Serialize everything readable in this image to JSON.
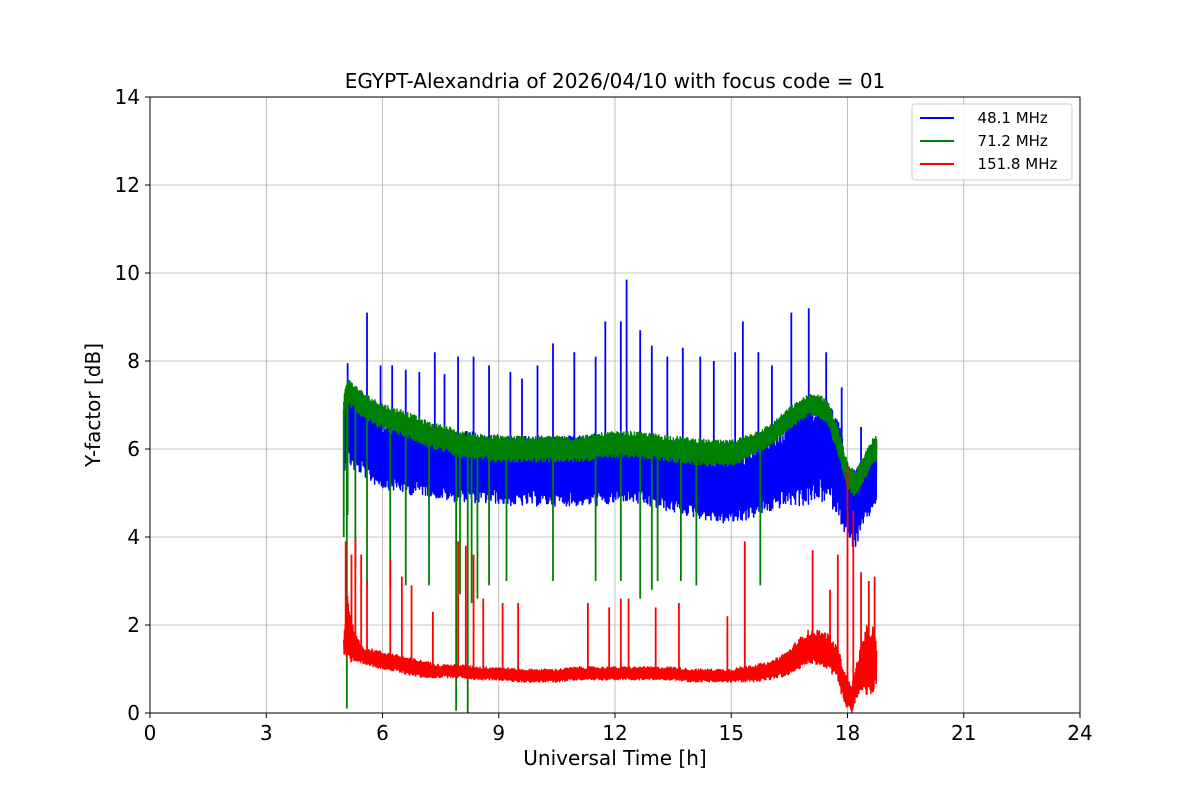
{
  "chart_data": {
    "type": "line",
    "title": "EGYPT-Alexandria of 2026/04/10 with focus code = 01",
    "xlabel": "Universal Time [h]",
    "ylabel": "Y-factor [dB]",
    "xlim": [
      0,
      24
    ],
    "ylim": [
      0,
      14
    ],
    "xticks": [
      0,
      3,
      6,
      9,
      12,
      15,
      18,
      21,
      24
    ],
    "yticks": [
      0,
      2,
      4,
      6,
      8,
      10,
      12,
      14
    ],
    "grid": true,
    "legend_position": "top-right",
    "series": [
      {
        "name": "  48.1 MHz",
        "color": "#0000ff",
        "x": [
          5.0,
          5.05,
          5.1,
          5.25,
          5.5,
          5.6,
          5.75,
          6.0,
          6.25,
          6.5,
          6.75,
          7.0,
          7.25,
          7.5,
          7.75,
          8.0,
          8.25,
          8.5,
          8.75,
          9.0,
          9.25,
          9.5,
          9.75,
          10.0,
          10.25,
          10.5,
          10.75,
          11.0,
          11.25,
          11.5,
          11.75,
          12.0,
          12.2,
          12.3,
          12.5,
          12.75,
          13.0,
          13.25,
          13.5,
          13.75,
          14.0,
          14.25,
          14.5,
          14.75,
          15.0,
          15.25,
          15.5,
          15.75,
          16.0,
          16.25,
          16.5,
          16.75,
          17.0,
          17.25,
          17.5,
          17.75,
          18.0,
          18.2,
          18.4,
          18.6,
          18.75
        ],
        "mean": [
          6.1,
          6.4,
          6.5,
          6.3,
          6.2,
          6.1,
          6.0,
          5.9,
          5.85,
          5.8,
          5.75,
          5.75,
          5.7,
          5.65,
          5.6,
          5.6,
          5.6,
          5.55,
          5.55,
          5.55,
          5.5,
          5.5,
          5.5,
          5.5,
          5.5,
          5.5,
          5.5,
          5.5,
          5.5,
          5.5,
          5.5,
          5.55,
          5.6,
          5.6,
          5.55,
          5.5,
          5.45,
          5.4,
          5.35,
          5.3,
          5.25,
          5.2,
          5.15,
          5.1,
          5.1,
          5.15,
          5.2,
          5.3,
          5.45,
          5.55,
          5.7,
          5.8,
          5.9,
          6.0,
          5.95,
          5.6,
          4.8,
          4.6,
          5.0,
          5.3,
          5.5
        ],
        "amplitude": [
          0.7,
          0.8,
          0.8,
          0.8,
          0.8,
          0.8,
          0.8,
          0.8,
          0.8,
          0.8,
          0.8,
          0.8,
          0.8,
          0.8,
          0.8,
          0.8,
          0.8,
          0.8,
          0.8,
          0.8,
          0.8,
          0.8,
          0.8,
          0.8,
          0.8,
          0.8,
          0.8,
          0.8,
          0.8,
          0.8,
          0.8,
          0.8,
          0.8,
          0.8,
          0.8,
          0.8,
          0.8,
          0.8,
          0.8,
          0.8,
          0.8,
          0.8,
          0.8,
          0.8,
          0.8,
          0.8,
          0.8,
          0.8,
          0.9,
          0.9,
          1.0,
          1.1,
          1.2,
          1.2,
          1.2,
          1.1,
          0.9,
          0.9,
          0.8,
          0.8,
          0.7
        ],
        "spikes": [
          [
            5.1,
            7.95
          ],
          [
            5.6,
            9.1
          ],
          [
            5.95,
            7.9
          ],
          [
            6.25,
            7.9
          ],
          [
            6.6,
            7.8
          ],
          [
            6.95,
            7.75
          ],
          [
            7.35,
            8.2
          ],
          [
            7.6,
            7.7
          ],
          [
            7.95,
            8.1
          ],
          [
            8.35,
            8.1
          ],
          [
            8.75,
            7.9
          ],
          [
            9.3,
            7.75
          ],
          [
            9.6,
            7.6
          ],
          [
            10.0,
            7.9
          ],
          [
            10.4,
            8.4
          ],
          [
            10.95,
            8.2
          ],
          [
            11.5,
            8.1
          ],
          [
            11.75,
            8.9
          ],
          [
            12.15,
            8.9
          ],
          [
            12.3,
            9.85
          ],
          [
            12.65,
            8.7
          ],
          [
            12.95,
            8.35
          ],
          [
            13.35,
            8.1
          ],
          [
            13.75,
            8.3
          ],
          [
            14.2,
            8.1
          ],
          [
            14.55,
            8.0
          ],
          [
            15.1,
            8.2
          ],
          [
            15.3,
            8.9
          ],
          [
            15.7,
            8.2
          ],
          [
            16.05,
            7.9
          ],
          [
            16.55,
            9.1
          ],
          [
            17.0,
            9.2
          ],
          [
            17.45,
            8.2
          ],
          [
            17.85,
            7.4
          ],
          [
            18.35,
            6.5
          ]
        ]
      },
      {
        "name": "  71.2 MHz",
        "color": "#008000",
        "x": [
          5.0,
          5.05,
          5.1,
          5.25,
          5.5,
          5.75,
          6.0,
          6.25,
          6.5,
          6.75,
          7.0,
          7.25,
          7.5,
          7.75,
          8.0,
          8.5,
          9.0,
          9.5,
          10.0,
          10.5,
          11.0,
          11.5,
          12.0,
          12.5,
          13.0,
          13.5,
          14.0,
          14.5,
          15.0,
          15.5,
          16.0,
          16.25,
          16.5,
          16.75,
          17.0,
          17.25,
          17.5,
          17.75,
          18.0,
          18.2,
          18.4,
          18.6,
          18.75
        ],
        "mean": [
          6.9,
          7.2,
          7.3,
          7.2,
          7.0,
          6.85,
          6.75,
          6.65,
          6.6,
          6.5,
          6.4,
          6.3,
          6.25,
          6.2,
          6.1,
          6.05,
          6.0,
          6.0,
          6.0,
          6.0,
          6.0,
          6.05,
          6.1,
          6.1,
          6.05,
          6.0,
          5.95,
          5.9,
          5.9,
          6.1,
          6.3,
          6.5,
          6.7,
          6.85,
          7.0,
          7.0,
          6.8,
          6.2,
          5.4,
          5.2,
          5.5,
          5.9,
          6.0
        ],
        "amplitude": [
          0.25,
          0.3,
          0.3,
          0.3,
          0.3,
          0.3,
          0.3,
          0.3,
          0.3,
          0.3,
          0.3,
          0.3,
          0.3,
          0.3,
          0.3,
          0.3,
          0.3,
          0.3,
          0.3,
          0.3,
          0.3,
          0.3,
          0.3,
          0.3,
          0.3,
          0.3,
          0.3,
          0.3,
          0.3,
          0.25,
          0.25,
          0.25,
          0.25,
          0.25,
          0.25,
          0.25,
          0.3,
          0.3,
          0.3,
          0.3,
          0.3,
          0.3,
          0.3
        ],
        "dips": [
          [
            5.0,
            4.0
          ],
          [
            5.08,
            0.1
          ],
          [
            5.1,
            4.5
          ],
          [
            5.3,
            3.3
          ],
          [
            5.6,
            2.9
          ],
          [
            6.2,
            2.9
          ],
          [
            6.6,
            2.9
          ],
          [
            7.2,
            2.9
          ],
          [
            7.9,
            0.05
          ],
          [
            8.0,
            2.7
          ],
          [
            8.2,
            0.0
          ],
          [
            8.3,
            2.5
          ],
          [
            8.45,
            2.6
          ],
          [
            8.75,
            2.9
          ],
          [
            9.2,
            3.0
          ],
          [
            10.4,
            3.0
          ],
          [
            11.5,
            3.0
          ],
          [
            12.15,
            3.0
          ],
          [
            12.65,
            2.6
          ],
          [
            12.95,
            2.8
          ],
          [
            13.1,
            3.0
          ],
          [
            13.7,
            3.0
          ],
          [
            14.1,
            2.9
          ],
          [
            15.75,
            2.9
          ]
        ]
      },
      {
        "name": "  151.8 MHz",
        "color": "#ff0000",
        "x": [
          5.0,
          5.05,
          5.1,
          5.2,
          5.35,
          5.5,
          5.75,
          6.0,
          6.25,
          6.5,
          6.75,
          7.0,
          7.5,
          8.0,
          8.5,
          9.0,
          9.5,
          10.0,
          10.5,
          11.0,
          11.5,
          12.0,
          12.5,
          13.0,
          13.5,
          14.0,
          14.5,
          15.0,
          15.5,
          16.0,
          16.25,
          16.5,
          16.75,
          17.0,
          17.25,
          17.5,
          17.75,
          17.95,
          18.1,
          18.3,
          18.5,
          18.65,
          18.75
        ],
        "mean": [
          1.5,
          1.8,
          2.0,
          1.6,
          1.4,
          1.3,
          1.25,
          1.2,
          1.15,
          1.1,
          1.05,
          1.0,
          0.95,
          0.95,
          0.9,
          0.9,
          0.85,
          0.85,
          0.85,
          0.9,
          0.9,
          0.9,
          0.9,
          0.9,
          0.9,
          0.85,
          0.85,
          0.85,
          0.9,
          0.95,
          1.05,
          1.15,
          1.35,
          1.5,
          1.5,
          1.4,
          1.1,
          0.5,
          0.3,
          0.9,
          1.2,
          1.2,
          1.1
        ],
        "amplitude": [
          0.2,
          0.5,
          0.8,
          0.5,
          0.3,
          0.2,
          0.2,
          0.2,
          0.2,
          0.2,
          0.2,
          0.2,
          0.15,
          0.15,
          0.15,
          0.15,
          0.15,
          0.15,
          0.15,
          0.15,
          0.15,
          0.15,
          0.15,
          0.15,
          0.15,
          0.15,
          0.15,
          0.15,
          0.2,
          0.2,
          0.25,
          0.3,
          0.35,
          0.4,
          0.4,
          0.4,
          0.4,
          0.4,
          0.3,
          0.5,
          0.8,
          0.8,
          0.5
        ],
        "spikes": [
          [
            5.05,
            3.9
          ],
          [
            5.2,
            3.6
          ],
          [
            5.3,
            4.0
          ],
          [
            5.45,
            3.6
          ],
          [
            5.6,
            3.0
          ],
          [
            6.2,
            3.5
          ],
          [
            6.5,
            3.1
          ],
          [
            6.75,
            2.9
          ],
          [
            7.3,
            2.3
          ],
          [
            7.95,
            3.9
          ],
          [
            8.15,
            3.8
          ],
          [
            8.35,
            3.6
          ],
          [
            8.6,
            2.6
          ],
          [
            9.1,
            2.5
          ],
          [
            9.5,
            2.5
          ],
          [
            11.3,
            2.5
          ],
          [
            11.85,
            2.4
          ],
          [
            12.15,
            2.6
          ],
          [
            12.35,
            2.6
          ],
          [
            13.05,
            2.4
          ],
          [
            13.65,
            2.5
          ],
          [
            14.9,
            2.2
          ],
          [
            15.35,
            3.9
          ],
          [
            17.1,
            3.7
          ],
          [
            17.55,
            2.8
          ],
          [
            17.75,
            3.6
          ],
          [
            18.0,
            5.6
          ],
          [
            18.15,
            4.6
          ],
          [
            18.35,
            3.2
          ],
          [
            18.55,
            3.0
          ],
          [
            18.7,
            3.1
          ]
        ]
      }
    ]
  }
}
